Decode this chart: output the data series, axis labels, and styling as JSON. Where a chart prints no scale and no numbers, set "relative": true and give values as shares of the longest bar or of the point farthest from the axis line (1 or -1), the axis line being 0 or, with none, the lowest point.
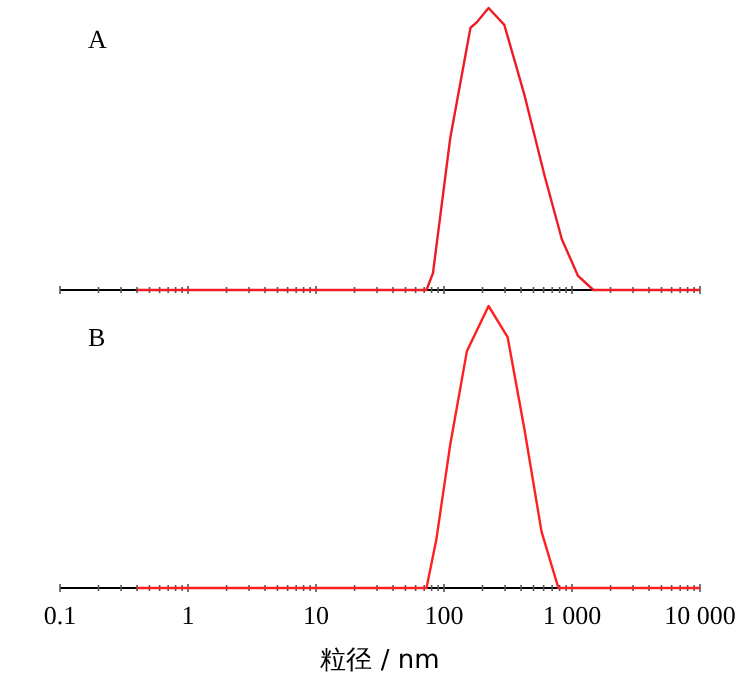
{
  "chart_data": [
    {
      "type": "line",
      "title": "A",
      "relative": true,
      "log": "x",
      "xlim": [
        0.1,
        10000
      ],
      "tick_labels": false,
      "marker": "none",
      "line_style": "solid",
      "xticks": [
        0.1,
        {
          "value": 0.2,
          "label": null
        },
        {
          "value": 0.3,
          "label": null
        },
        {
          "value": 0.4,
          "label": null
        },
        {
          "value": 0.5,
          "label": null
        },
        {
          "value": 0.6,
          "label": null
        },
        {
          "value": 0.7,
          "label": null
        },
        {
          "value": 0.8,
          "label": null
        },
        {
          "value": 0.9,
          "label": null
        },
        1,
        {
          "value": 2,
          "label": null
        },
        {
          "value": 3,
          "label": null
        },
        {
          "value": 4,
          "label": null
        },
        {
          "value": 5,
          "label": null
        },
        {
          "value": 6,
          "label": null
        },
        {
          "value": 7,
          "label": null
        },
        {
          "value": 8,
          "label": null
        },
        {
          "value": 9,
          "label": null
        },
        10,
        {
          "value": 20,
          "label": null
        },
        {
          "value": 30,
          "label": null
        },
        {
          "value": 40,
          "label": null
        },
        {
          "value": 50,
          "label": null
        },
        {
          "value": 60,
          "label": null
        },
        {
          "value": 70,
          "label": null
        },
        {
          "value": 80,
          "label": null
        },
        {
          "value": 90,
          "label": null
        },
        100,
        {
          "value": 200,
          "label": null
        },
        {
          "value": 300,
          "label": null
        },
        {
          "value": 400,
          "label": null
        },
        {
          "value": 500,
          "label": null
        },
        {
          "value": 600,
          "label": null
        },
        {
          "value": 700,
          "label": null
        },
        {
          "value": 800,
          "label": null
        },
        {
          "value": 900,
          "label": null
        },
        1000,
        {
          "value": 2000,
          "label": null
        },
        {
          "value": 3000,
          "label": null
        },
        {
          "value": 4000,
          "label": null
        },
        {
          "value": 5000,
          "label": null
        },
        {
          "value": 6000,
          "label": null
        },
        {
          "value": 7000,
          "label": null
        },
        {
          "value": 8000,
          "label": null
        },
        {
          "value": 9000,
          "label": null
        },
        10000
      ],
      "series": [
        {
          "color": "#ee1c25",
          "x": [
            0.4,
            73,
            82,
            112,
            161,
            181,
            223,
            296,
            426,
            615,
            833,
            1115,
            1470,
            10000
          ],
          "values": [
            0,
            0,
            0.06,
            0.54,
            0.93,
            0.95,
            1,
            0.94,
            0.69,
            0.4,
            0.18,
            0.05,
            0,
            0
          ]
        }
      ]
    },
    {
      "type": "line",
      "title": "B",
      "relative": true,
      "log": "x",
      "xlim": [
        0.1,
        10000
      ],
      "xlabel": "粒径 / nm",
      "marker": "none",
      "line_style": "solid",
      "xticks": [
        0.1,
        {
          "value": 0.2,
          "label": null
        },
        {
          "value": 0.3,
          "label": null
        },
        {
          "value": 0.4,
          "label": null
        },
        {
          "value": 0.5,
          "label": null
        },
        {
          "value": 0.6,
          "label": null
        },
        {
          "value": 0.7,
          "label": null
        },
        {
          "value": 0.8,
          "label": null
        },
        {
          "value": 0.9,
          "label": null
        },
        1,
        {
          "value": 2,
          "label": null
        },
        {
          "value": 3,
          "label": null
        },
        {
          "value": 4,
          "label": null
        },
        {
          "value": 5,
          "label": null
        },
        {
          "value": 6,
          "label": null
        },
        {
          "value": 7,
          "label": null
        },
        {
          "value": 8,
          "label": null
        },
        {
          "value": 9,
          "label": null
        },
        10,
        {
          "value": 20,
          "label": null
        },
        {
          "value": 30,
          "label": null
        },
        {
          "value": 40,
          "label": null
        },
        {
          "value": 50,
          "label": null
        },
        {
          "value": 60,
          "label": null
        },
        {
          "value": 70,
          "label": null
        },
        {
          "value": 80,
          "label": null
        },
        {
          "value": 90,
          "label": null
        },
        100,
        {
          "value": 200,
          "label": null
        },
        {
          "value": 300,
          "label": null
        },
        {
          "value": 400,
          "label": null
        },
        {
          "value": 500,
          "label": null
        },
        {
          "value": 600,
          "label": null
        },
        {
          "value": 700,
          "label": null
        },
        {
          "value": 800,
          "label": null
        },
        {
          "value": 900,
          "label": null
        },
        {
          "value": 1000,
          "label": "1 000"
        },
        {
          "value": 2000,
          "label": null
        },
        {
          "value": 3000,
          "label": null
        },
        {
          "value": 4000,
          "label": null
        },
        {
          "value": 5000,
          "label": null
        },
        {
          "value": 6000,
          "label": null
        },
        {
          "value": 7000,
          "label": null
        },
        {
          "value": 8000,
          "label": null
        },
        {
          "value": 9000,
          "label": null
        },
        {
          "value": 10000,
          "label": "10 000"
        }
      ],
      "series": [
        {
          "color": "#ff2020",
          "x": [
            0.4,
            73,
            87,
            112,
            151,
            223,
            314,
            426,
            578,
            783,
            10000
          ],
          "values": [
            0,
            0,
            0.17,
            0.51,
            0.84,
            1,
            0.89,
            0.56,
            0.2,
            0,
            0
          ]
        }
      ]
    }
  ]
}
